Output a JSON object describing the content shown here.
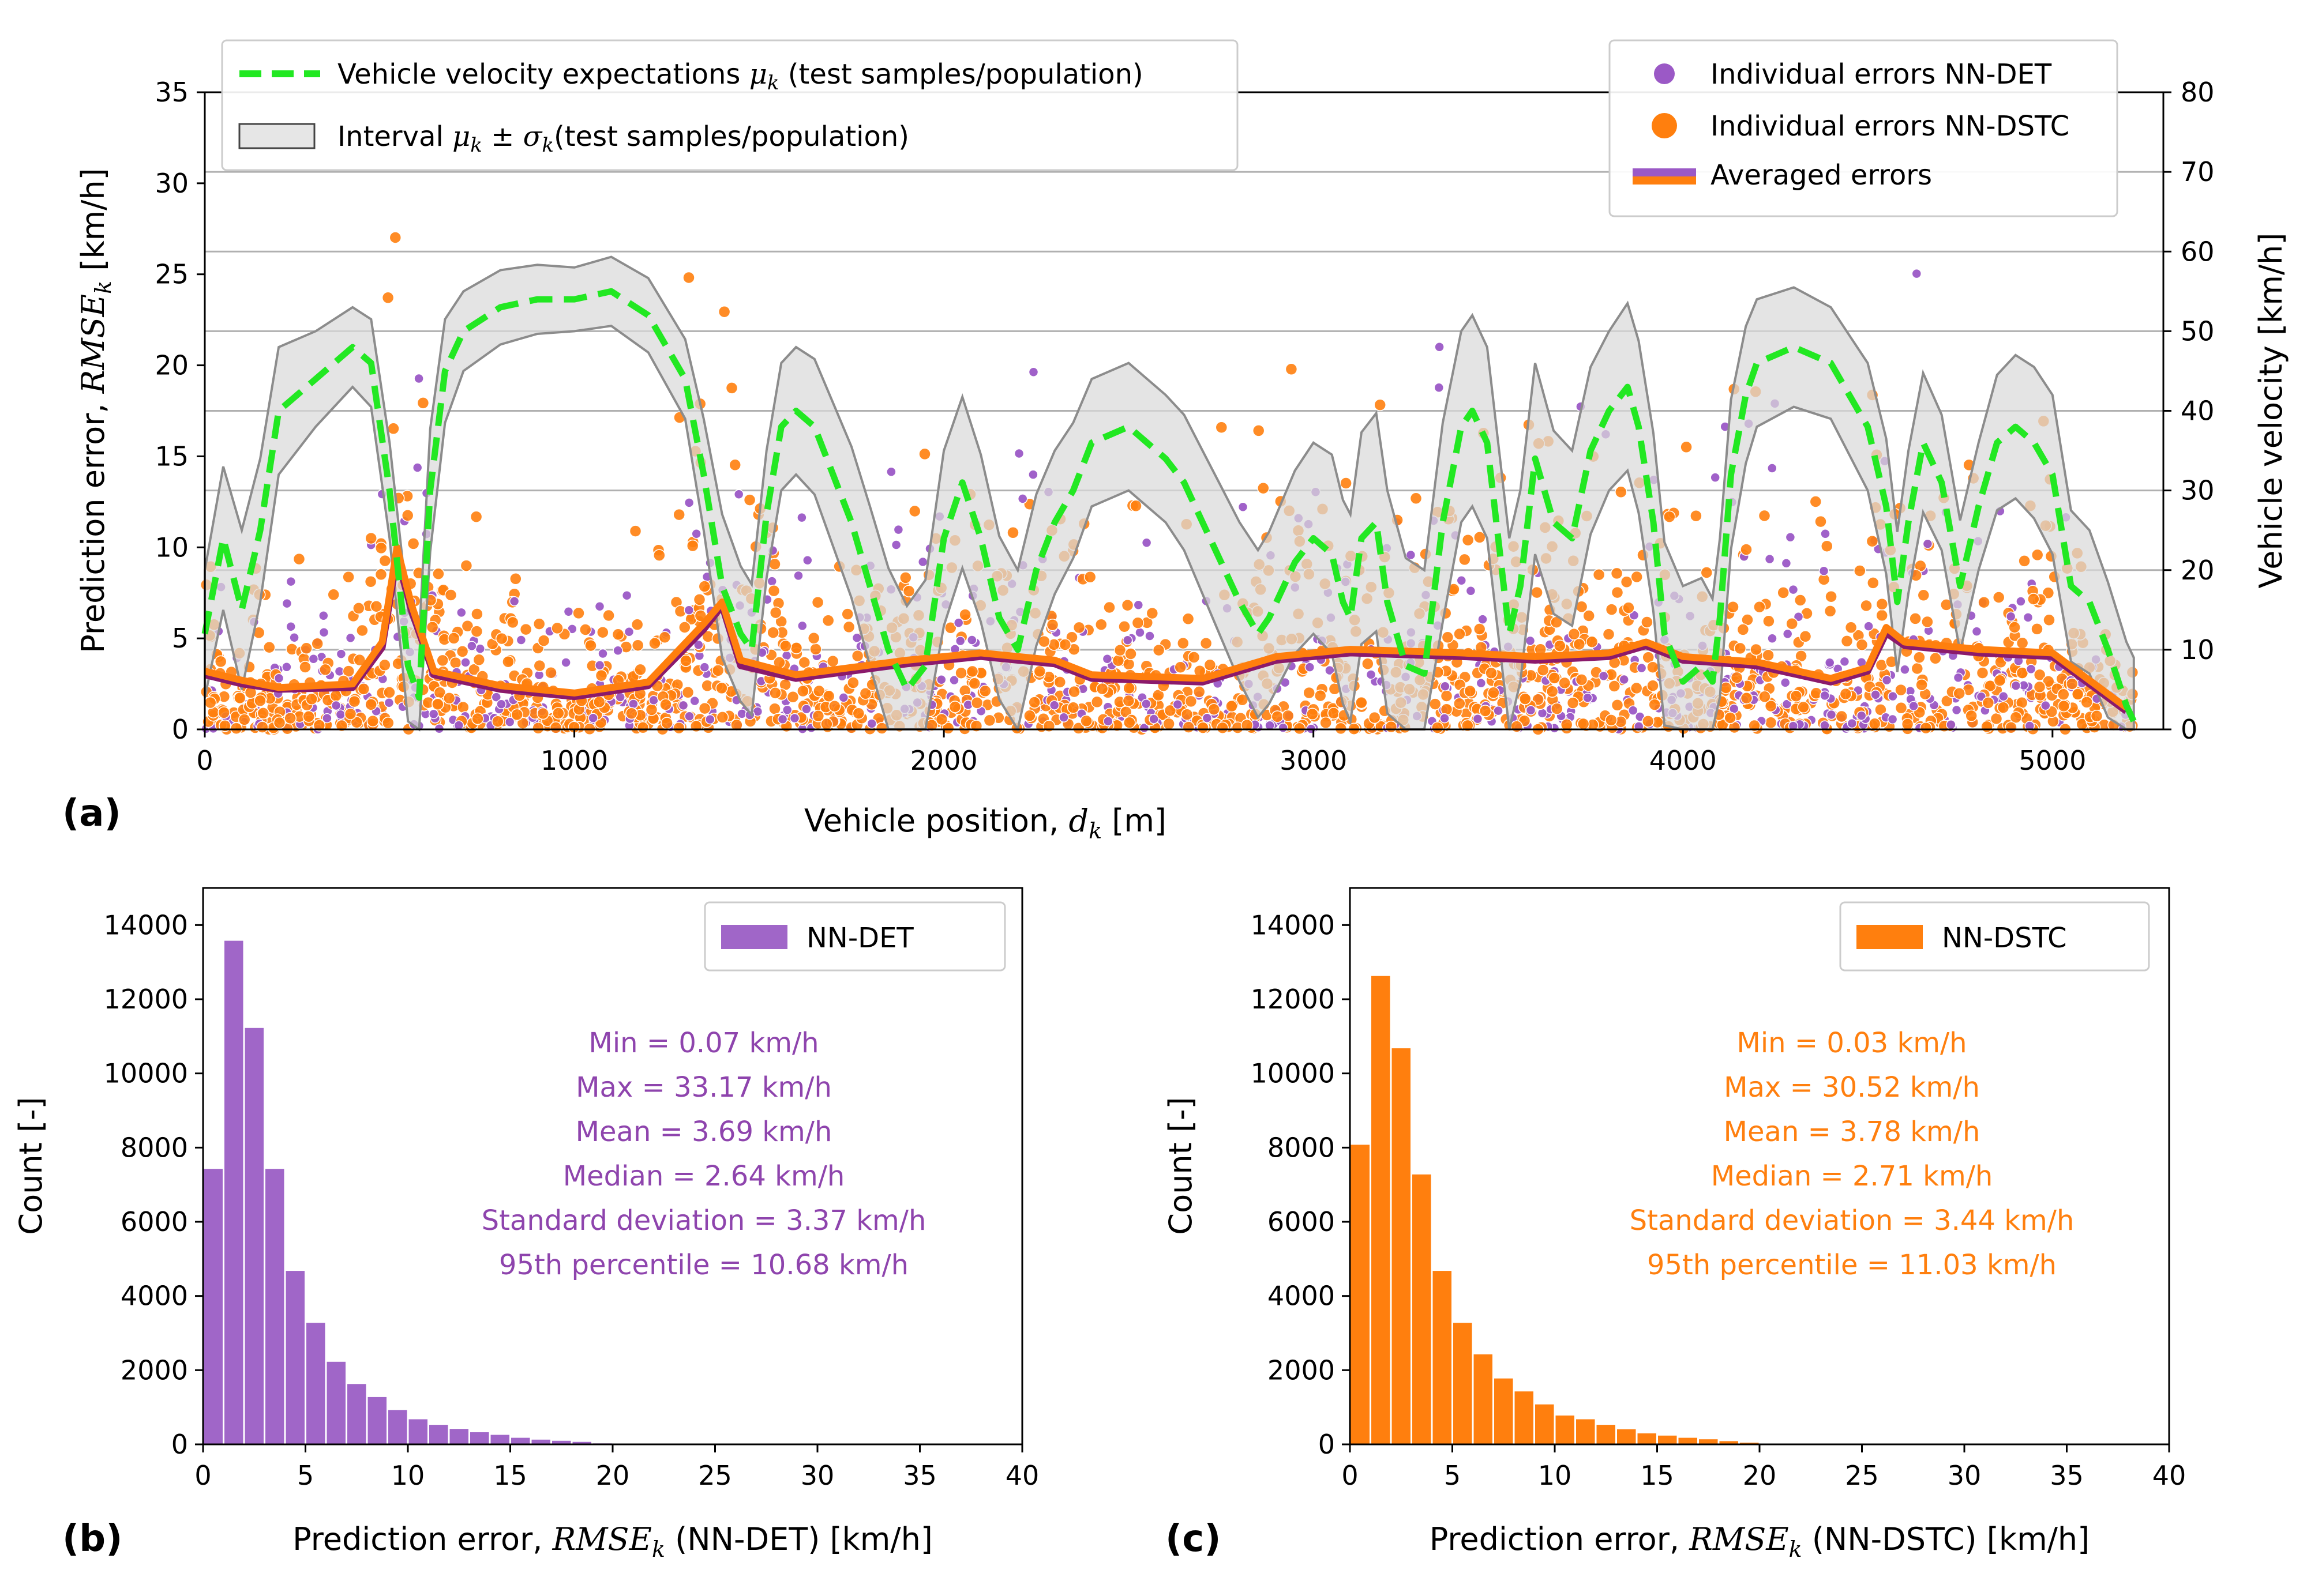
{
  "colors": {
    "det": "#9b59c6",
    "dstc": "#ff7f0e",
    "velocity": "#22e822",
    "interval_fill": "#d9d9d9",
    "interval_edge": "#8c8c8c",
    "avg_det": "#8b1a6b"
  },
  "panels": {
    "a": "(a)",
    "b": "(b)",
    "c": "(c)"
  },
  "chart_data": [
    {
      "type": "scatter",
      "id": "a",
      "xlabel": {
        "pre": "Vehicle position, ",
        "sym": "d",
        "sub": "k",
        "post": " [m]"
      },
      "ylabel": {
        "pre": "Prediction error, ",
        "sym": "RMSE",
        "sub": "k",
        "post": "  [km/h]"
      },
      "y2label": "Vehicle velocity [km/h]",
      "xlim": [
        0,
        5300
      ],
      "ylim": [
        0,
        35
      ],
      "y2lim": [
        0,
        80
      ],
      "xticks": [
        "0",
        "1000",
        "2000",
        "3000",
        "4000",
        "5000"
      ],
      "yticks": [
        "0",
        "5",
        "10",
        "15",
        "20",
        "25",
        "30",
        "35"
      ],
      "y2ticks": [
        "0",
        "10",
        "20",
        "30",
        "40",
        "50",
        "60",
        "70",
        "80"
      ],
      "grid": true,
      "legend_left": [
        {
          "name": "Vehicle velocity expectations",
          "sym": "μ",
          "sub": "k",
          "post": " (test samples/population)"
        },
        {
          "name": "Interval ",
          "sym": "μ",
          "sub": "k",
          "mid": " ± ",
          "sym2": "σ",
          "sub2": "k",
          "post": "(test samples/population)"
        }
      ],
      "legend_right": [
        "Individual errors NN-DET",
        "Individual errors NN-DSTC",
        "Averaged errors"
      ],
      "velocity_mean": {
        "x": [
          0,
          50,
          100,
          150,
          200,
          300,
          400,
          450,
          500,
          550,
          580,
          610,
          650,
          700,
          800,
          900,
          1000,
          1100,
          1200,
          1300,
          1350,
          1400,
          1450,
          1480,
          1520,
          1560,
          1600,
          1650,
          1700,
          1750,
          1800,
          1850,
          1900,
          1950,
          2000,
          2050,
          2100,
          2150,
          2200,
          2250,
          2300,
          2350,
          2400,
          2450,
          2500,
          2550,
          2600,
          2650,
          2700,
          2750,
          2800,
          2850,
          2880,
          2920,
          2950,
          3000,
          3050,
          3080,
          3100,
          3130,
          3170,
          3200,
          3250,
          3300,
          3350,
          3400,
          3430,
          3470,
          3500,
          3530,
          3560,
          3600,
          3650,
          3700,
          3750,
          3800,
          3850,
          3880,
          3920,
          3950,
          4000,
          4050,
          4080,
          4100,
          4130,
          4170,
          4200,
          4300,
          4400,
          4450,
          4500,
          4550,
          4580,
          4610,
          4650,
          4700,
          4750,
          4800,
          4850,
          4900,
          4950,
          5000,
          5050,
          5100,
          5150,
          5200,
          5220
        ],
        "y": [
          12,
          24,
          15,
          25,
          40,
          44,
          48,
          46,
          30,
          8,
          4,
          30,
          45,
          50,
          53,
          54,
          54,
          55,
          52,
          44,
          32,
          18,
          12,
          10,
          27,
          38,
          40,
          38,
          32,
          26,
          18,
          10,
          5,
          8,
          24,
          31,
          24,
          14,
          10,
          20,
          26,
          30,
          36,
          37,
          38,
          36,
          34,
          31,
          26,
          21,
          16,
          12,
          14,
          18,
          21,
          24,
          22,
          16,
          14,
          24,
          26,
          16,
          8,
          7,
          26,
          38,
          40,
          36,
          24,
          12,
          18,
          34,
          26,
          24,
          35,
          40,
          43,
          38,
          26,
          12,
          6,
          8,
          6,
          14,
          32,
          42,
          46,
          48,
          46,
          42,
          38,
          28,
          16,
          26,
          36,
          31,
          18,
          28,
          36,
          38,
          36,
          32,
          18,
          16,
          10,
          3,
          1
        ]
      },
      "velocity_sd": {
        "x": [
          0,
          100,
          200,
          300,
          400,
          500,
          600,
          700,
          1000,
          1300,
          1400,
          1500,
          1600,
          1800,
          2000,
          2200,
          2400,
          2600,
          2800,
          3000,
          3200,
          3400,
          3600,
          3800,
          4000,
          4200,
          4400,
          4600,
          4800,
          5000,
          5200
        ],
        "y": [
          8,
          10,
          8,
          6,
          5,
          6,
          8,
          5,
          4,
          5,
          9,
          8,
          8,
          10,
          11,
          10,
          8,
          8,
          10,
          12,
          14,
          12,
          12,
          10,
          12,
          8,
          7,
          9,
          8,
          10,
          8
        ]
      },
      "avg_det": {
        "x": [
          0,
          100,
          200,
          400,
          480,
          520,
          560,
          620,
          800,
          1000,
          1200,
          1350,
          1400,
          1450,
          1600,
          1900,
          2100,
          2300,
          2400,
          2700,
          2900,
          3100,
          3400,
          3600,
          3800,
          3900,
          4000,
          4200,
          4400,
          4500,
          4550,
          4600,
          4800,
          5000,
          5200
        ],
        "y": [
          3.0,
          2.5,
          2.2,
          2.3,
          4.5,
          9.5,
          6.5,
          3.0,
          2.2,
          1.8,
          2.4,
          5.5,
          6.8,
          3.5,
          2.8,
          3.6,
          4.0,
          3.6,
          2.8,
          2.6,
          3.8,
          4.2,
          4.0,
          3.8,
          4.0,
          4.6,
          3.8,
          3.5,
          2.6,
          3.2,
          5.3,
          4.6,
          4.2,
          4.0,
          1.0
        ]
      },
      "avg_dstc": {
        "x": [
          0,
          100,
          200,
          400,
          480,
          520,
          560,
          620,
          800,
          1000,
          1200,
          1350,
          1400,
          1450,
          1600,
          1900,
          2100,
          2300,
          2400,
          2700,
          2900,
          3100,
          3400,
          3600,
          3800,
          3900,
          4000,
          4200,
          4400,
          4500,
          4550,
          4600,
          4800,
          5000,
          5200
        ],
        "y": [
          3.2,
          2.7,
          2.3,
          2.5,
          4.8,
          10.0,
          6.8,
          3.2,
          2.4,
          2.0,
          2.6,
          5.8,
          7.0,
          3.8,
          3.0,
          3.8,
          4.2,
          3.8,
          3.0,
          2.8,
          4.0,
          4.4,
          4.2,
          4.0,
          4.2,
          4.8,
          4.0,
          3.7,
          2.8,
          3.4,
          5.6,
          4.8,
          4.4,
          4.2,
          1.2
        ]
      }
    },
    {
      "type": "bar",
      "id": "b",
      "name": "NN-DET",
      "xlabel": {
        "pre": "Prediction error, ",
        "sym": "RMSE",
        "sub": "k",
        "post": " (NN-DET)  [km/h]"
      },
      "ylabel": "Count [-]",
      "bin_width": 1,
      "bin_start": 0,
      "values": [
        7450,
        13600,
        11250,
        7450,
        4700,
        3300,
        2250,
        1650,
        1300,
        950,
        700,
        550,
        440,
        350,
        280,
        200,
        150,
        120,
        90,
        50
      ],
      "xlim": [
        0,
        40
      ],
      "ylim": [
        0,
        15000
      ],
      "xticks": [
        "0",
        "5",
        "10",
        "15",
        "20",
        "25",
        "30",
        "35",
        "40"
      ],
      "yticks": [
        "0",
        "2000",
        "4000",
        "6000",
        "8000",
        "10000",
        "12000",
        "14000"
      ],
      "stats": [
        "Min = 0.07 km/h",
        "Max = 33.17 km/h",
        "Mean = 3.69 km/h",
        "Median = 2.64 km/h",
        "Standard deviation = 3.37 km/h",
        "95th percentile = 10.68 km/h"
      ]
    },
    {
      "type": "bar",
      "id": "c",
      "name": "NN-DSTC",
      "xlabel": {
        "pre": "Prediction error, ",
        "sym": "RMSE",
        "sub": "k",
        "post": " (NN-DSTC) [km/h]"
      },
      "ylabel": "Count [-]",
      "bin_width": 1,
      "bin_start": 0,
      "values": [
        8100,
        12650,
        10700,
        7300,
        4700,
        3300,
        2450,
        1800,
        1450,
        1100,
        800,
        700,
        550,
        430,
        320,
        260,
        200,
        160,
        110,
        70
      ],
      "xlim": [
        0,
        40
      ],
      "ylim": [
        0,
        15000
      ],
      "xticks": [
        "0",
        "5",
        "10",
        "15",
        "20",
        "25",
        "30",
        "35",
        "40"
      ],
      "yticks": [
        "0",
        "2000",
        "4000",
        "6000",
        "8000",
        "10000",
        "12000",
        "14000"
      ],
      "stats": [
        "Min = 0.03 km/h",
        "Max = 30.52 km/h",
        "Mean = 3.78 km/h",
        "Median = 2.71 km/h",
        "Standard deviation = 3.44 km/h",
        "95th percentile = 11.03 km/h"
      ]
    }
  ]
}
